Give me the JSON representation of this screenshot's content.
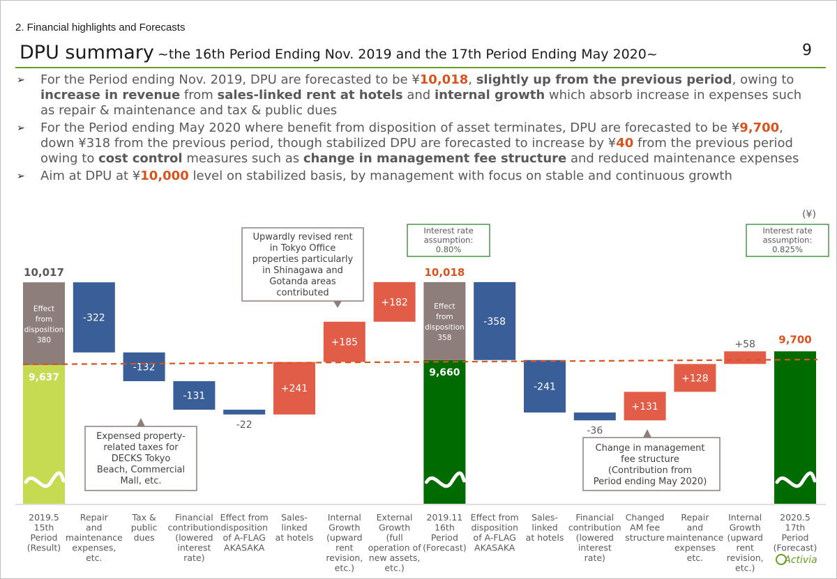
{
  "header": {
    "section": "2. Financial highlights and Forecasts",
    "title": "DPU summary",
    "subtitle": "~the 16th Period Ending Nov. 2019 and the 17th Period Ending May 2020~",
    "page_number": "9"
  },
  "bullets": [
    {
      "segments": [
        {
          "t": "For the Period ending Nov. 2019, DPU are forecasted to be ",
          "s": ""
        },
        {
          "t": "¥",
          "s": ""
        },
        {
          "t": "10,018",
          "s": "hl"
        },
        {
          "t": ", ",
          "s": ""
        },
        {
          "t": "slightly up from the previous period",
          "s": "dk"
        },
        {
          "t": ", owing to ",
          "s": ""
        },
        {
          "t": "increase in revenue",
          "s": "dk"
        },
        {
          "t": " from ",
          "s": ""
        },
        {
          "t": "sales-linked rent at hotels",
          "s": "dk"
        },
        {
          "t": " and ",
          "s": ""
        },
        {
          "t": "internal growth",
          "s": "dk"
        },
        {
          "t": " which absorb increase in expenses such as repair & maintenance and tax & public dues",
          "s": ""
        }
      ]
    },
    {
      "segments": [
        {
          "t": "For the Period ending May 2020 where benefit from disposition of asset terminates, DPU are forecasted to be ¥",
          "s": ""
        },
        {
          "t": "9,700",
          "s": "hl"
        },
        {
          "t": ", down ¥318 from the previous period, though stabilized DPU are forecasted to increase by ¥",
          "s": ""
        },
        {
          "t": "40",
          "s": "hl"
        },
        {
          "t": " from the previous period owing to ",
          "s": ""
        },
        {
          "t": "cost control",
          "s": "dk"
        },
        {
          "t": " measures such as ",
          "s": ""
        },
        {
          "t": "change in management fee structure",
          "s": "dk"
        },
        {
          "t": " and reduced maintenance expenses",
          "s": ""
        }
      ]
    },
    {
      "segments": [
        {
          "t": "Aim at DPU at ¥",
          "s": ""
        },
        {
          "t": "10,000",
          "s": "hl"
        },
        {
          "t": " level on stabilized basis, by management with focus on stable and continuous growth",
          "s": ""
        }
      ]
    }
  ],
  "colors": {
    "light_green": "#c6da52",
    "dark_green": "#006b00",
    "disposition": "#8d7e7c",
    "blue": "#3a5f98",
    "red": "#e25d48",
    "orange": "#d9531e",
    "green_rule": "#6a9b22"
  },
  "chart_data": {
    "type": "waterfall",
    "unit": "(¥)",
    "reference_line": 9660,
    "axis_min": 9000,
    "axis_max": 10240,
    "bars": [
      {
        "id": "p15",
        "kind": "total",
        "base_value": 9637,
        "base_label": "9,637",
        "disposition": 380,
        "disposition_label": [
          "Effect",
          "from",
          "disposition",
          "380"
        ],
        "total": 10017,
        "total_label": "10,017",
        "category": [
          "2019.5",
          "15th",
          "Period",
          "(Result)"
        ]
      },
      {
        "id": "s1",
        "kind": "down",
        "start": 10017,
        "end": 9695,
        "label": "-322",
        "category": [
          "Repair",
          "and",
          "maintenance",
          "expenses,",
          "etc."
        ]
      },
      {
        "id": "s2",
        "kind": "down",
        "start": 9695,
        "end": 9563,
        "label": "-132",
        "category": [
          "Tax &",
          "public",
          "dues"
        ]
      },
      {
        "id": "s3",
        "kind": "down",
        "start": 9563,
        "end": 9432,
        "label": "-131",
        "category": [
          "Financial",
          "contribution",
          "(lowered",
          "interest",
          "rate)"
        ]
      },
      {
        "id": "s4",
        "kind": "down",
        "start": 9432,
        "end": 9410,
        "label": "-22",
        "category": [
          "Effect from",
          "disposition",
          "of A-FLAG",
          "AKASAKA"
        ]
      },
      {
        "id": "s5",
        "kind": "up",
        "start": 9410,
        "end": 9651,
        "label": "+241",
        "category": [
          "Sales-",
          "linked",
          "at hotels"
        ]
      },
      {
        "id": "s6",
        "kind": "up",
        "start": 9651,
        "end": 9836,
        "label": "+185",
        "category": [
          "Internal",
          "Growth",
          "(upward",
          "rent",
          "revision,",
          "etc.)"
        ]
      },
      {
        "id": "s7",
        "kind": "up",
        "start": 9836,
        "end": 10018,
        "label": "+182",
        "category": [
          "External",
          "Growth",
          "(full",
          "operation of",
          "new assets,",
          "etc.)"
        ]
      },
      {
        "id": "p16",
        "kind": "total",
        "base_value": 9660,
        "base_label": "9,660",
        "disposition": 358,
        "disposition_label": [
          "Effect",
          "from",
          "disposition",
          "358"
        ],
        "total": 10018,
        "total_label": "10,018",
        "category": [
          "2019.11",
          "16th",
          "Period",
          "(Forecast)"
        ]
      },
      {
        "id": "s8",
        "kind": "down",
        "start": 10018,
        "end": 9660,
        "label": "-358",
        "category": [
          "Effect from",
          "disposition",
          "of A-FLAG",
          "AKASAKA"
        ]
      },
      {
        "id": "s9",
        "kind": "down",
        "start": 9660,
        "end": 9419,
        "label": "-241",
        "category": [
          "Sales-",
          "linked",
          "at hotels"
        ]
      },
      {
        "id": "s10",
        "kind": "down",
        "start": 9419,
        "end": 9383,
        "label": "-36",
        "category": [
          "Financial",
          "contribution",
          "(lowered",
          "interest",
          "rate)"
        ]
      },
      {
        "id": "s11",
        "kind": "up",
        "start": 9383,
        "end": 9514,
        "label": "+131",
        "category": [
          "Changed",
          "AM fee",
          "structure"
        ]
      },
      {
        "id": "s12",
        "kind": "up",
        "start": 9514,
        "end": 9642,
        "label": "+128",
        "category": [
          "Repair",
          "and",
          "maintenance",
          "expenses",
          "etc."
        ]
      },
      {
        "id": "s13",
        "kind": "up",
        "start": 9642,
        "end": 9700,
        "label": "+58",
        "category": [
          "Internal",
          "Growth",
          "(upward",
          "rent",
          "revision,",
          "etc.)"
        ]
      },
      {
        "id": "p17",
        "kind": "total",
        "base_value": 9700,
        "total": 9700,
        "total_label": "9,700",
        "category": [
          "2020.5",
          "17th",
          "Period",
          "(Forecast)"
        ]
      }
    ],
    "annotations": {
      "upward_revised": [
        "Upwardly revised rent",
        "in Tokyo Office",
        "properties particularly",
        "in Shinagawa and",
        "Gotanda areas",
        "contributed"
      ],
      "expensed_taxes": [
        "Expensed property-",
        "related taxes for",
        "DECKS Tokyo",
        "Beach, Commercial",
        "Mall, etc."
      ],
      "mgmt_fee": [
        "Change in management",
        "fee structure",
        "(Contribution from",
        "Period ending May 2020)"
      ],
      "interest_16": [
        "Interest rate",
        "assumption:",
        "0.80%"
      ],
      "interest_17": [
        "Interest rate",
        "assumption:",
        "0.825%"
      ]
    },
    "logo_text": "Activia"
  }
}
